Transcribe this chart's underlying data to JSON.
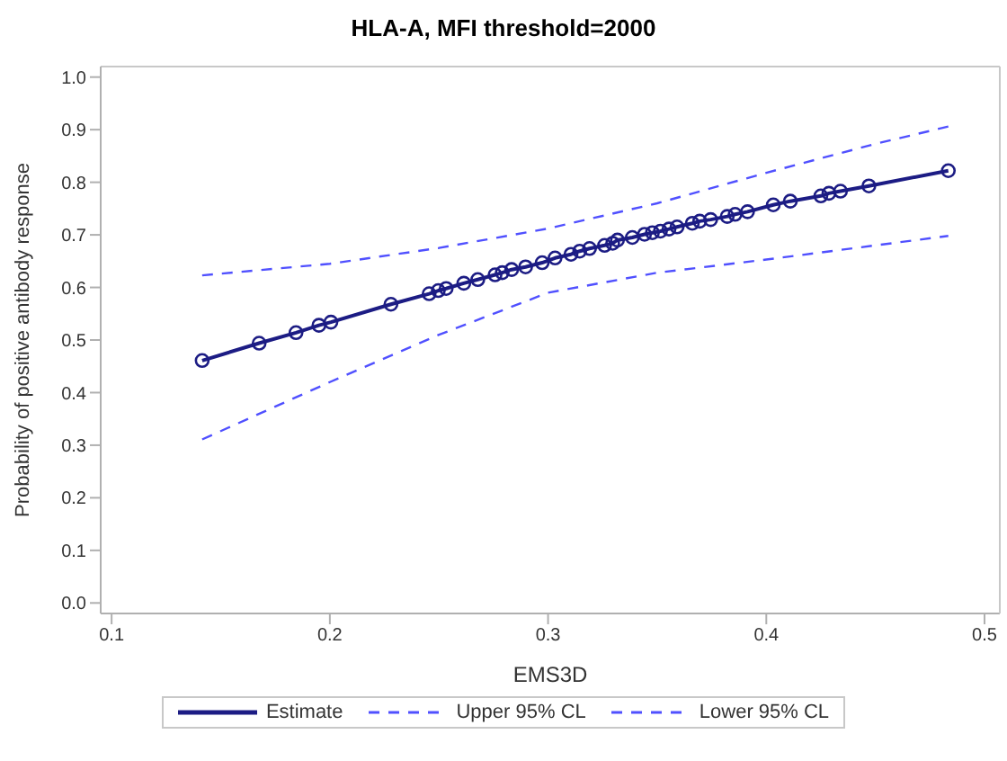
{
  "chart_data": {
    "type": "line",
    "title": "HLA-A, MFI threshold=2000",
    "xlabel": "EMS3D",
    "ylabel": "Probability of positive antibody response",
    "xlim": [
      0.095,
      0.507
    ],
    "ylim": [
      -0.02,
      1.02
    ],
    "xticks": [
      0.1,
      0.2,
      0.3,
      0.4,
      0.5
    ],
    "yticks": [
      {
        "value": 0,
        "label": "0.0"
      },
      {
        "value": 0.1,
        "label": "0.1"
      },
      {
        "value": 0.2,
        "label": "0.2"
      },
      {
        "value": 0.3,
        "label": "0.3"
      },
      {
        "value": 0.4,
        "label": "0.4"
      },
      {
        "value": 0.5,
        "label": "0.5"
      },
      {
        "value": 0.6,
        "label": "0.6"
      },
      {
        "value": 0.7,
        "label": "0.7"
      },
      {
        "value": 0.8,
        "label": "0.8"
      },
      {
        "value": 0.9,
        "label": "0.9"
      },
      {
        "value": 1,
        "label": "1.0"
      }
    ],
    "legend": "bottom",
    "series": [
      {
        "name": "Estimate",
        "color": "#1c1c84",
        "marker": "circle",
        "line_style": "solid",
        "x": [
          0.1415,
          0.1676,
          0.1845,
          0.195,
          0.2005,
          0.228,
          0.2455,
          0.2497,
          0.2533,
          0.2614,
          0.2678,
          0.2757,
          0.279,
          0.2833,
          0.2897,
          0.2973,
          0.3032,
          0.3105,
          0.3145,
          0.319,
          0.3259,
          0.3296,
          0.3318,
          0.3386,
          0.3442,
          0.3478,
          0.3515,
          0.3554,
          0.3591,
          0.3661,
          0.3695,
          0.3745,
          0.3821,
          0.3857,
          0.3914,
          0.4032,
          0.411,
          0.425,
          0.4287,
          0.434,
          0.447,
          0.4834
        ],
        "values": [
          0.461,
          0.494,
          0.514,
          0.528,
          0.534,
          0.568,
          0.588,
          0.594,
          0.598,
          0.608,
          0.615,
          0.624,
          0.628,
          0.634,
          0.639,
          0.647,
          0.656,
          0.663,
          0.669,
          0.674,
          0.68,
          0.684,
          0.69,
          0.695,
          0.701,
          0.704,
          0.707,
          0.711,
          0.715,
          0.722,
          0.726,
          0.729,
          0.735,
          0.739,
          0.744,
          0.757,
          0.764,
          0.774,
          0.779,
          0.783,
          0.793,
          0.822
        ]
      },
      {
        "name": "Upper 95% CL",
        "color": "#5050ff",
        "marker": "none",
        "line_style": "dashed",
        "x": [
          0.1415,
          0.2,
          0.25,
          0.3,
          0.35,
          0.4,
          0.45,
          0.4834
        ],
        "values": [
          0.623,
          0.645,
          0.675,
          0.712,
          0.76,
          0.818,
          0.873,
          0.906
        ]
      },
      {
        "name": "Lower 95% CL",
        "color": "#5050ff",
        "marker": "none",
        "line_style": "dashed",
        "x": [
          0.1415,
          0.2,
          0.25,
          0.3,
          0.35,
          0.4,
          0.45,
          0.4834
        ],
        "values": [
          0.311,
          0.42,
          0.51,
          0.59,
          0.628,
          0.653,
          0.68,
          0.698
        ]
      }
    ]
  }
}
